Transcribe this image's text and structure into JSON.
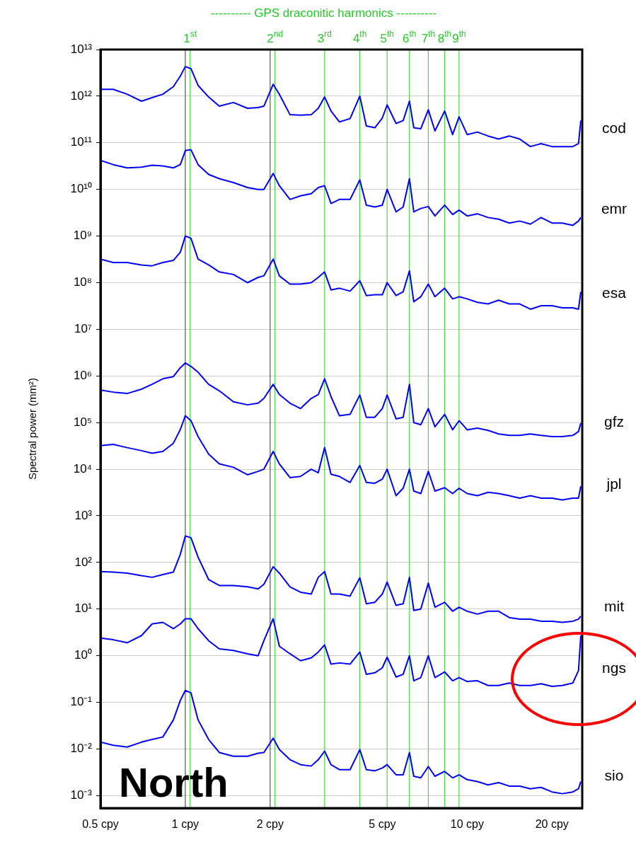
{
  "chart_data": {
    "type": "line",
    "title": "---------- GPS draconitic harmonics ----------",
    "ylabel": "Spectral power (mm²)",
    "x": [
      0.5,
      0.555,
      0.622,
      0.699,
      0.762,
      0.832,
      0.907,
      0.96,
      1.0,
      1.047,
      1.11,
      1.21,
      1.32,
      1.481,
      1.662,
      1.813,
      1.9,
      2.05,
      2.156,
      2.352,
      2.564,
      2.797,
      2.963,
      3.12,
      3.288,
      3.523,
      3.842,
      4.16,
      4.388,
      4.703,
      5.0,
      5.2,
      5.594,
      5.928,
      6.24,
      6.464,
      6.847,
      7.28,
      7.686,
      8.32,
      8.878,
      9.36,
      10,
      10.87,
      11.86,
      12.93,
      14.1,
      15.37,
      16.76,
      18.28,
      20,
      21.74,
      23.7,
      24.83,
      25.3
    ],
    "series": [
      {
        "name": "cod",
        "color": "#0000ff",
        "values": [
          1400000000000.0,
          1400000000000.0,
          1100000000000.0,
          780000000000.0,
          930000000000.0,
          1100000000000.0,
          1600000000000.0,
          2700000000000.0,
          4300000000000.0,
          3900000000000.0,
          1700000000000.0,
          960000000000.0,
          610000000000.0,
          730000000000.0,
          550000000000.0,
          570000000000.0,
          610000000000.0,
          1800000000000.0,
          1100000000000.0,
          400000000000.0,
          390000000000.0,
          400000000000.0,
          550000000000.0,
          960000000000.0,
          480000000000.0,
          280000000000.0,
          330000000000.0,
          1000000000000.0,
          230000000000.0,
          210000000000.0,
          340000000000.0,
          650000000000.0,
          260000000000.0,
          300000000000.0,
          780000000000.0,
          210000000000.0,
          200000000000.0,
          510000000000.0,
          180000000000.0,
          480000000000.0,
          150000000000.0,
          360000000000.0,
          150000000000.0,
          170000000000.0,
          140000000000.0,
          120000000000.0,
          140000000000.0,
          120000000000.0,
          83000000000.0,
          96000000000.0,
          83000000000.0,
          83000000000.0,
          83000000000.0,
          96000000000.0,
          300000000000.0
        ]
      },
      {
        "name": "emr",
        "color": "#0000ff",
        "values": [
          42000000000.0,
          34000000000.0,
          29000000000.0,
          30000000000.0,
          33000000000.0,
          32000000000.0,
          29000000000.0,
          34000000000.0,
          68000000000.0,
          71000000000.0,
          34000000000.0,
          21000000000.0,
          17000000000.0,
          14000000000.0,
          11000000000.0,
          10000000000.0,
          10000000000.0,
          22000000000.0,
          12000000000.0,
          6100000000.0,
          7300000000.0,
          8100000000.0,
          11000000000.0,
          12000000000.0,
          5000000000.0,
          6100000000.0,
          6100000000.0,
          16000000000.0,
          4600000000.0,
          4200000000.0,
          4600000000.0,
          10000000000.0,
          3300000000.0,
          4200000000.0,
          17000000000.0,
          3300000000.0,
          3900000000.0,
          4300000000.0,
          2700000000.0,
          4600000000.0,
          2900000000.0,
          3600000000.0,
          2700000000.0,
          3000000000.0,
          2500000000.0,
          2300000000.0,
          1900000000.0,
          2100000000.0,
          1800000000.0,
          2500000000.0,
          1900000000.0,
          1900000000.0,
          1700000000.0,
          2100000000.0,
          2500000000.0
        ]
      },
      {
        "name": "esa",
        "color": "#0000ff",
        "values": [
          320000000.0,
          270000000.0,
          270000000.0,
          240000000.0,
          230000000.0,
          270000000.0,
          300000000.0,
          450000000.0,
          1000000000.0,
          900000000.0,
          320000000.0,
          240000000.0,
          170000000.0,
          150000000.0,
          100000000.0,
          130000000.0,
          140000000.0,
          320000000.0,
          140000000.0,
          93000000.0,
          93000000.0,
          100000000.0,
          130000000.0,
          170000000.0,
          70000000.0,
          76000000.0,
          66000000.0,
          110000000.0,
          53000000.0,
          55000000.0,
          55000000.0,
          100000000.0,
          53000000.0,
          64000000.0,
          180000000.0,
          39000000.0,
          50000000.0,
          93000000.0,
          50000000.0,
          76000000.0,
          45000000.0,
          50000000.0,
          45000000.0,
          38000000.0,
          35000000.0,
          42000000.0,
          35000000.0,
          35000000.0,
          27000000.0,
          32000000.0,
          32000000.0,
          29000000.0,
          29000000.0,
          27000000.0,
          64000000.0
        ]
      },
      {
        "name": "gfz",
        "color": "#0000ff",
        "values": [
          500000.0,
          450000.0,
          420000.0,
          520000.0,
          660000.0,
          870000.0,
          970000.0,
          1500000.0,
          1900000.0,
          1600000.0,
          1200000.0,
          660000.0,
          480000.0,
          280000.0,
          240000.0,
          260000.0,
          330000.0,
          660000.0,
          400000.0,
          260000.0,
          200000.0,
          330000.0,
          400000.0,
          870000.0,
          360000.0,
          140000.0,
          150000.0,
          390000.0,
          130000.0,
          130000.0,
          200000.0,
          390000.0,
          120000.0,
          130000.0,
          660000.0,
          100000.0,
          90000.0,
          200000.0,
          81000.0,
          150000.0,
          70000.0,
          110000.0,
          70000.0,
          76000.0,
          68000.0,
          57000.0,
          53000.0,
          53000.0,
          57000.0,
          53000.0,
          50000.0,
          50000.0,
          53000.0,
          64000.0,
          97000.0
        ]
      },
      {
        "name": "jpl",
        "color": "#0000ff",
        "values": [
          32000.0,
          34000.0,
          29000.0,
          25000.0,
          22000.0,
          24000.0,
          36000.0,
          71000.0,
          140000.0,
          110000.0,
          50000.0,
          21000.0,
          13000.0,
          11000.0,
          7600.0,
          9000.0,
          10000.0,
          24000.0,
          13000.0,
          6600.0,
          7000.0,
          10000.0,
          8400.0,
          29000.0,
          7800.0,
          7000.0,
          5200.0,
          12000.0,
          5200.0,
          5000.0,
          6100.0,
          10000.0,
          2700.0,
          3900.0,
          10000.0,
          3400.0,
          3000.0,
          9000.0,
          3400.0,
          4000.0,
          3000.0,
          3900.0,
          3000.0,
          2700.0,
          3200.0,
          3000.0,
          2700.0,
          2400.0,
          2700.0,
          2400.0,
          2400.0,
          2200.0,
          2400.0,
          2400.0,
          4300.0
        ]
      },
      {
        "name": "mit",
        "color": "#0000ff",
        "values": [
          64,
          62,
          59,
          52,
          48,
          55,
          62,
          150,
          370,
          340,
          130,
          43,
          32,
          32,
          30,
          27,
          34,
          81,
          59,
          30,
          23,
          21,
          48,
          64,
          21,
          21,
          19,
          47,
          13,
          14,
          21,
          38,
          12,
          13,
          48,
          9.3,
          10,
          36,
          11,
          14,
          9.0,
          11,
          9.0,
          7.8,
          9.0,
          9.0,
          6.6,
          6.1,
          6.1,
          5.5,
          5.5,
          5.2,
          5.5,
          6.1,
          7.0
        ]
      },
      {
        "name": "ngs",
        "color": "#0000ff",
        "values": [
          2.4,
          2.2,
          1.9,
          2.7,
          4.8,
          5.2,
          3.8,
          4.8,
          6.2,
          6.2,
          3.8,
          2.1,
          1.4,
          1.3,
          1.1,
          1.0,
          2.1,
          6.2,
          1.6,
          1.1,
          0.78,
          0.9,
          1.2,
          1.7,
          0.66,
          0.7,
          0.66,
          1.2,
          0.4,
          0.43,
          0.55,
          0.93,
          0.35,
          0.4,
          1.0,
          0.29,
          0.34,
          1.0,
          0.34,
          0.45,
          0.29,
          0.34,
          0.28,
          0.29,
          0.23,
          0.23,
          0.26,
          0.23,
          0.23,
          0.25,
          0.22,
          0.23,
          0.26,
          0.48,
          2.7
        ]
      },
      {
        "name": "sio",
        "color": "#0000ff",
        "values": [
          0.014,
          0.012,
          0.011,
          0.014,
          0.016,
          0.018,
          0.042,
          0.11,
          0.18,
          0.16,
          0.042,
          0.016,
          0.0084,
          0.007,
          0.007,
          0.0081,
          0.0084,
          0.017,
          0.0097,
          0.0059,
          0.0046,
          0.0043,
          0.0059,
          0.009,
          0.0046,
          0.0036,
          0.0036,
          0.0097,
          0.0036,
          0.0034,
          0.0039,
          0.0046,
          0.0028,
          0.0028,
          0.0084,
          0.0026,
          0.0024,
          0.0042,
          0.0026,
          0.0033,
          0.0024,
          0.0028,
          0.0022,
          0.002,
          0.0017,
          0.0019,
          0.0016,
          0.0016,
          0.0014,
          0.0015,
          0.0012,
          0.0011,
          0.0012,
          0.0014,
          0.002
        ]
      }
    ],
    "log": "xy",
    "xlim": [
      0.5,
      25.6
    ],
    "ylim": [
      0.00054,
      10000000000000.0
    ],
    "xticks": [
      {
        "value": 0.5,
        "label": "0.5 cpy"
      },
      {
        "value": 1,
        "label": "1 cpy"
      },
      {
        "value": 2,
        "label": "2 cpy"
      },
      {
        "value": 5,
        "label": "5 cpy"
      },
      {
        "value": 10,
        "label": "10 cpy"
      },
      {
        "value": 20,
        "label": "20 cpy"
      }
    ],
    "yticks": [
      {
        "value": 0.001,
        "label": "10⁻³"
      },
      {
        "value": 0.01,
        "label": "10⁻²"
      },
      {
        "value": 0.1,
        "label": "10⁻¹"
      },
      {
        "value": 1,
        "label": "10⁰"
      },
      {
        "value": 10,
        "label": "10¹"
      },
      {
        "value": 100,
        "label": "10²"
      },
      {
        "value": 1000.0,
        "label": "10³"
      },
      {
        "value": 10000.0,
        "label": "10⁴"
      },
      {
        "value": 100000.0,
        "label": "10⁵"
      },
      {
        "value": 1000000.0,
        "label": "10⁶"
      },
      {
        "value": 10000000.0,
        "label": "10⁷"
      },
      {
        "value": 100000000.0,
        "label": "10⁸"
      },
      {
        "value": 1000000000.0,
        "label": "10⁹"
      },
      {
        "value": 10000000000.0,
        "label": "10¹⁰"
      },
      {
        "value": 100000000000.0,
        "label": "10¹¹"
      },
      {
        "value": 1000000000000.0,
        "label": "10¹²"
      },
      {
        "value": 10000000000000.0,
        "label": "10¹³"
      }
    ],
    "grid": "y",
    "ref_lines": [
      {
        "axis": "x",
        "value": 1,
        "color": "#555555"
      },
      {
        "axis": "x",
        "value": 2,
        "color": "#555555"
      },
      {
        "axis": "x",
        "value": 1.04,
        "label": "1$^{st}$",
        "color": "#44dd44"
      },
      {
        "axis": "x",
        "value": 2.08,
        "label": "2$^{nd}$",
        "color": "#44dd44"
      },
      {
        "axis": "x",
        "value": 3.12,
        "label": "3$^{rd}$",
        "color": "#44dd44"
      },
      {
        "axis": "x",
        "value": 4.16,
        "label": "4$^{th}$",
        "color": "#44dd44"
      },
      {
        "axis": "x",
        "value": 5.2,
        "label": "5$^{th}$",
        "color": "#44dd44"
      },
      {
        "axis": "x",
        "value": 6.24,
        "label": "6$^{th}$",
        "color": "#44dd44"
      },
      {
        "axis": "x",
        "value": 7.28,
        "label": "7$^{th}$",
        "color": "#44dd44"
      },
      {
        "axis": "x",
        "value": 8.32,
        "label": "8$^{th}$",
        "color": "#44dd44"
      },
      {
        "axis": "x",
        "value": 9.36,
        "label": "9$^{th}$",
        "color": "#44dd44"
      }
    ],
    "annotations": [
      "North"
    ]
  }
}
